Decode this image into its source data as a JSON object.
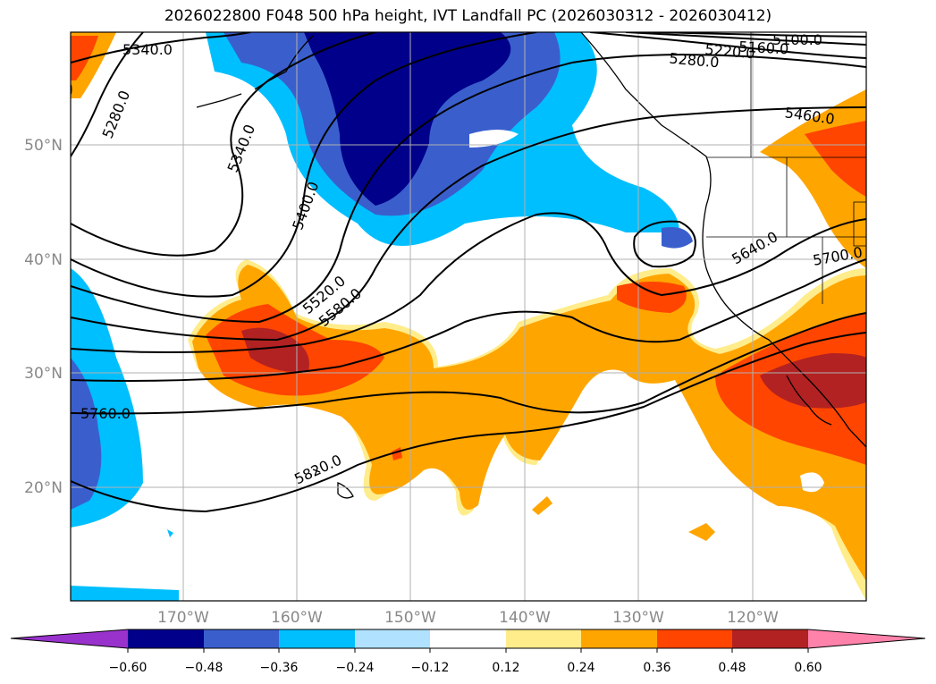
{
  "title": "2026022800 F048 500 hPa height, IVT Landfall PC (2026030312 - 2026030412)",
  "map": {
    "lat_labels": [
      "50°N",
      "40°N",
      "30°N",
      "20°N"
    ],
    "lon_labels": [
      "170°W",
      "160°W",
      "150°W",
      "140°W",
      "130°W",
      "120°W"
    ],
    "contour_labels": [
      "5340.0",
      "5280.0",
      "5340.0",
      "5400.0",
      "5520.0",
      "5580.0",
      "5760.0",
      "5820.0",
      "5280.0",
      "5220.0",
      "5160.0",
      "5100.0",
      "5460.0",
      "5640.0",
      "5700.0"
    ]
  },
  "colorbar": {
    "ticks": [
      "−0.60",
      "−0.48",
      "−0.36",
      "−0.24",
      "−0.12",
      "0.12",
      "0.24",
      "0.36",
      "0.48",
      "0.60"
    ],
    "colors": [
      "#9932cc",
      "#00008b",
      "#3a5fcd",
      "#00bfff",
      "#b0e2ff",
      "#ffffff",
      "#ffec8b",
      "#ffa500",
      "#ff4500",
      "#b22222",
      "#ff82ab"
    ]
  }
}
